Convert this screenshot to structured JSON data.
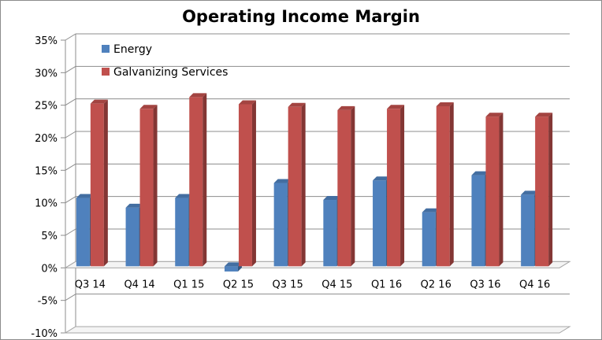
{
  "chart_data": {
    "type": "bar",
    "title": "Operating Income Margin",
    "categories": [
      "Q3 14",
      "Q4 14",
      "Q1 15",
      "Q2 15",
      "Q3 15",
      "Q4 15",
      "Q1 16",
      "Q2 16",
      "Q3 16",
      "Q4 16"
    ],
    "series": [
      {
        "name": "Energy",
        "values": [
          10.5,
          9.0,
          10.5,
          -0.8,
          12.8,
          10.2,
          13.2,
          8.3,
          14.0,
          11.0
        ],
        "color": "#4f81bd"
      },
      {
        "name": "Galvanizing Services",
        "values": [
          25.0,
          24.2,
          26.0,
          24.9,
          24.5,
          24.0,
          24.2,
          24.6,
          23.0,
          23.0
        ],
        "color": "#c0504d"
      }
    ],
    "ylim": [
      -10,
      35
    ],
    "ytick_step": 5,
    "ytick_labels": [
      "-10%",
      "-5%",
      "0%",
      "5%",
      "10%",
      "15%",
      "20%",
      "25%",
      "30%",
      "35%"
    ],
    "grid": true,
    "legend_position": "top-left",
    "xlabel": "",
    "ylabel": ""
  }
}
